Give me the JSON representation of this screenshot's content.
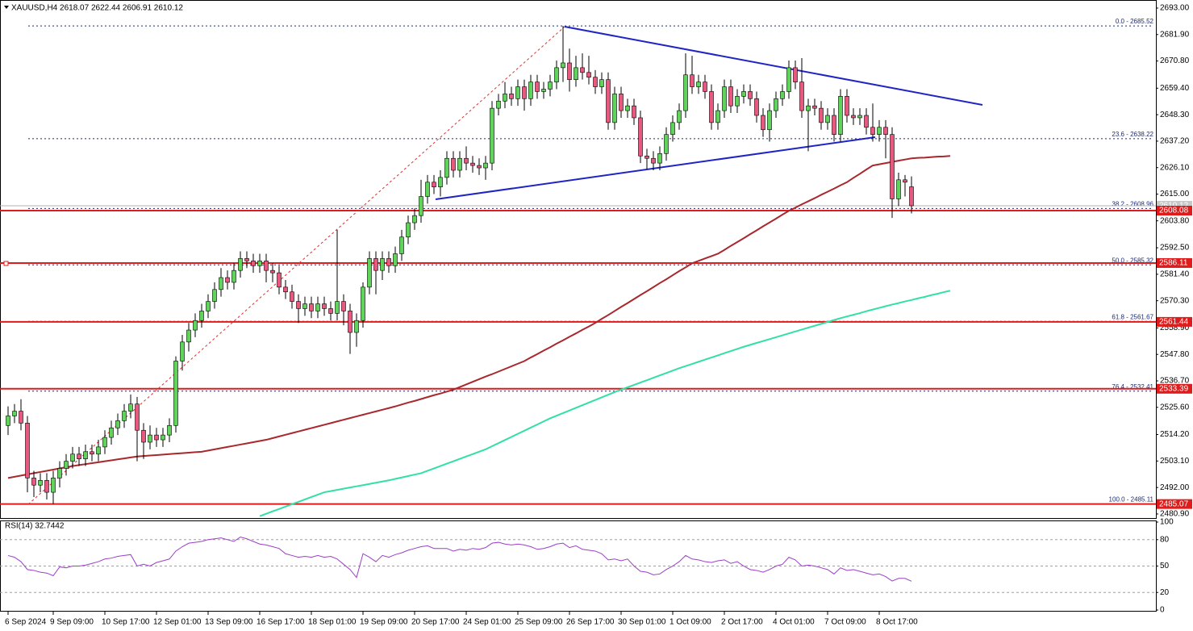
{
  "chart_data": {
    "type": "candlestick",
    "title": "XAUUSD,H4  2618.07 2622.44 2606.91 2610.12",
    "categories": [
      "6 Sep 2024",
      null,
      null,
      null,
      null,
      null,
      null,
      "9 Sep 09:00",
      null,
      null,
      null,
      null,
      null,
      null,
      null,
      "10 Sep 17:00",
      null,
      null,
      null,
      null,
      null,
      null,
      null,
      "12 Sep 01:00",
      null,
      null,
      null,
      null,
      null,
      null,
      null,
      "13 Sep 09:00",
      null,
      null,
      null,
      null,
      null,
      null,
      null,
      "16 Sep 17:00",
      null,
      null,
      null,
      null,
      null,
      null,
      null,
      "18 Sep 01:00",
      null,
      null,
      null,
      null,
      null,
      null,
      null,
      "19 Sep 09:00",
      null,
      null,
      null,
      null,
      null,
      null,
      null,
      "20 Sep 17:00",
      null,
      null,
      null,
      null,
      null,
      null,
      null,
      "24 Sep 01:00",
      null,
      null,
      null,
      null,
      null,
      null,
      null,
      "25 Sep 09:00",
      null,
      null,
      null,
      null,
      null,
      null,
      null,
      "26 Sep 17:00",
      null,
      null,
      null,
      null,
      null,
      null,
      null,
      "30 Sep 01:00",
      null,
      null,
      null,
      null,
      null,
      null,
      null,
      "1 Oct 09:00",
      null,
      null,
      null,
      null,
      null,
      null,
      null,
      "2 Oct 17:00",
      null,
      null,
      null,
      null,
      null,
      null,
      null,
      "4 Oct 01:00",
      null,
      null,
      null,
      null,
      null,
      null,
      null,
      "7 Oct 09:00",
      null,
      null,
      null,
      null,
      null,
      null,
      null,
      "8 Oct 17:00",
      null,
      null,
      null,
      null,
      null,
      null,
      null,
      null,
      null,
      null,
      null
    ],
    "open": [
      2518,
      2522,
      2524,
      2519,
      2496,
      2493,
      2495,
      2490,
      2496,
      2500,
      2503,
      2506,
      2504,
      2507,
      2506,
      2509,
      2513,
      2517,
      2520,
      2524,
      2527,
      2516,
      2511,
      2514,
      2512,
      2514,
      2518,
      2545,
      2553,
      2558,
      2562,
      2566,
      2570,
      2575,
      2580,
      2578,
      2583,
      2588,
      2587,
      2585,
      2587,
      2583,
      2582,
      2576,
      2574,
      2570,
      2567,
      2569,
      2566,
      2569,
      2567,
      2565,
      2570,
      2566,
      2557,
      2562,
      2576,
      2588,
      2583,
      2588,
      2585,
      2590,
      2597,
      2603,
      2606,
      2614,
      2620,
      2618,
      2622,
      2630,
      2625,
      2630,
      2628,
      2627,
      2626,
      2628,
      2651,
      2654,
      2657,
      2655,
      2660,
      2655,
      2662,
      2658,
      2659,
      2662,
      2668,
      2670,
      2663,
      2668,
      2666,
      2664,
      2660,
      2663,
      2645,
      2657,
      2650,
      2652,
      2647,
      2631,
      2630,
      2628,
      2632,
      2640,
      2645,
      2650,
      2665,
      2660,
      2662,
      2658,
      2645,
      2650,
      2660,
      2652,
      2656,
      2658,
      2655,
      2648,
      2642,
      2650,
      2655,
      2658,
      2668,
      2662,
      2650,
      2652,
      2651,
      2645,
      2648,
      2640,
      2656,
      2648,
      2647,
      2648,
      2643,
      2640,
      2643,
      2640,
      2613,
      2621,
      2618.07,
      null,
      null,
      null,
      null,
      null,
      null
    ],
    "high": [
      2526,
      2527,
      2529,
      2522,
      2499,
      2498,
      2498,
      2499,
      2503,
      2506,
      2509,
      2509,
      2510,
      2510,
      2512,
      2516,
      2520,
      2523,
      2527,
      2531,
      2530,
      2519,
      2518,
      2517,
      2517,
      2521,
      2547,
      2556,
      2561,
      2565,
      2569,
      2573,
      2578,
      2584,
      2583,
      2586,
      2591,
      2591,
      2590,
      2590,
      2590,
      2586,
      2585,
      2579,
      2577,
      2573,
      2572,
      2572,
      2572,
      2572,
      2570,
      2600,
      2573,
      2569,
      2565,
      2578,
      2591,
      2591,
      2591,
      2591,
      2593,
      2600,
      2606,
      2609,
      2621,
      2623,
      2623,
      2625,
      2633,
      2633,
      2633,
      2635,
      2631,
      2630,
      2631,
      2654,
      2657,
      2662,
      2660,
      2663,
      2663,
      2665,
      2665,
      2662,
      2665,
      2671,
      2685.52,
      2676,
      2673,
      2674,
      2673,
      2667,
      2666,
      2666,
      2660,
      2660,
      2655,
      2655,
      2650,
      2634,
      2633,
      2635,
      2643,
      2648,
      2653,
      2674,
      2673,
      2665,
      2665,
      2661,
      2653,
      2663,
      2663,
      2659,
      2661,
      2661,
      2658,
      2651,
      2653,
      2658,
      2661,
      2671,
      2671,
      2672,
      2655,
      2655,
      2654,
      2651,
      2651,
      2659,
      2659,
      2651,
      2651,
      2651,
      2653,
      2646,
      2646,
      2643,
      2624,
      2623,
      2622.44,
      null,
      null,
      null,
      null,
      null,
      null
    ],
    "low": [
      2514,
      2519,
      2516,
      2490,
      2488,
      2490,
      2487,
      2485.11,
      2492,
      2497,
      2500,
      2501,
      2501,
      2503,
      2503,
      2506,
      2510,
      2514,
      2517,
      2521,
      2503,
      2504,
      2508,
      2509,
      2509,
      2511,
      2515,
      2541,
      2549,
      2555,
      2559,
      2563,
      2567,
      2572,
      2575,
      2575,
      2580,
      2584,
      2582,
      2582,
      2578,
      2578,
      2573,
      2571,
      2567,
      2561,
      2564,
      2563,
      2563,
      2564,
      2562,
      2562,
      2560,
      2548,
      2551,
      2559,
      2573,
      2573,
      2579,
      2582,
      2582,
      2587,
      2594,
      2600,
      2603,
      2611,
      2615,
      2614,
      2619,
      2622,
      2622,
      2625,
      2624,
      2623,
      2621,
      2625,
      2648,
      2651,
      2652,
      2652,
      2650,
      2652,
      2655,
      2655,
      2656,
      2659,
      2662,
      2658,
      2660,
      2663,
      2661,
      2657,
      2657,
      2642,
      2642,
      2647,
      2647,
      2644,
      2628,
      2625.5,
      2625,
      2625,
      2629,
      2637,
      2642,
      2647,
      2657,
      2657,
      2655,
      2642,
      2642,
      2647,
      2649,
      2649,
      2653,
      2652,
      2645,
      2639,
      2637,
      2647,
      2652,
      2655,
      2659,
      2647,
      2633,
      2648,
      2642,
      2642,
      2637,
      2637,
      2645,
      2644,
      2644,
      2640,
      2637,
      2637,
      2630,
      2605,
      2610,
      2614,
      2606.91,
      null,
      null,
      null,
      null,
      null,
      null
    ],
    "close": [
      2522,
      2524,
      2519,
      2496,
      2493,
      2495,
      2490,
      2496,
      2500,
      2503,
      2506,
      2504,
      2507,
      2506,
      2509,
      2513,
      2517,
      2520,
      2524,
      2527,
      2516,
      2511,
      2514,
      2512,
      2514,
      2518,
      2545,
      2553,
      2558,
      2562,
      2566,
      2570,
      2575,
      2580,
      2578,
      2583,
      2588,
      2587,
      2585,
      2587,
      2583,
      2582,
      2576,
      2574,
      2570,
      2567,
      2569,
      2566,
      2569,
      2567,
      2565,
      2570,
      2566,
      2557,
      2562,
      2576,
      2588,
      2583,
      2588,
      2585,
      2590,
      2597,
      2603,
      2606,
      2614,
      2620,
      2618,
      2622,
      2630,
      2625,
      2630,
      2628,
      2627,
      2626,
      2628,
      2651,
      2654,
      2657,
      2655,
      2660,
      2655,
      2662,
      2658,
      2659,
      2662,
      2668,
      2670,
      2663,
      2668,
      2666,
      2664,
      2660,
      2663,
      2645,
      2657,
      2650,
      2652,
      2647,
      2631,
      2630,
      2628,
      2632,
      2640,
      2645,
      2650,
      2665,
      2660,
      2662,
      2658,
      2645,
      2650,
      2660,
      2652,
      2656,
      2658,
      2655,
      2648,
      2642,
      2650,
      2655,
      2658,
      2668,
      2662,
      2650,
      2652,
      2651,
      2645,
      2648,
      2640,
      2656,
      2648,
      2647,
      2648,
      2643,
      2640,
      2643,
      2640,
      2613,
      2621,
      2620,
      2610.12,
      null,
      null,
      null,
      null,
      null,
      null
    ],
    "up_color": "#5fd35a",
    "down_color": "#e8587f",
    "ylim": [
      2479.2,
      2695.7
    ],
    "yticks": [
      {
        "value": 2693,
        "label": "2693.00"
      },
      {
        "value": 2681.9,
        "label": "2681.90"
      },
      {
        "value": 2670.8,
        "label": "2670.80"
      },
      {
        "value": 2659.4,
        "label": "2659.40"
      },
      {
        "value": 2648.3,
        "label": "2648.30"
      },
      {
        "value": 2637.2,
        "label": "2637.20"
      },
      {
        "value": 2626.1,
        "label": "2626.10"
      },
      {
        "value": 2615,
        "label": "2615.00"
      },
      {
        "value": 2603.8,
        "label": "2603.80"
      },
      {
        "value": 2592.5,
        "label": "2592.50"
      },
      {
        "value": 2581.4,
        "label": "2581.40"
      },
      {
        "value": 2570.3,
        "label": "2570.30"
      },
      {
        "value": 2558.9,
        "label": "2558.90"
      },
      {
        "value": 2547.8,
        "label": "2547.80"
      },
      {
        "value": 2536.7,
        "label": "2536.70"
      },
      {
        "value": 2525.6,
        "label": "2525.60"
      },
      {
        "value": 2514.2,
        "label": "2514.20"
      },
      {
        "value": 2503.1,
        "label": "2503.10"
      },
      {
        "value": 2492,
        "label": "2492.00"
      },
      {
        "value": 2480.9,
        "label": "2480.90"
      }
    ],
    "moving_averages": [
      {
        "color": "#a8282e",
        "values": [
          2496,
          2496.5,
          2497,
          2497.5,
          2498,
          2498.5,
          2499,
          2499.5,
          2500,
          2500.5,
          2501,
          2501.4,
          2501.8,
          2502.2,
          2502.6,
          2503,
          2503.4,
          2503.8,
          2504.2,
          2504.6,
          2505,
          2505.2,
          2505.4,
          2505.6,
          2505.8,
          2506,
          2506.2,
          2506.4,
          2506.6,
          2506.8,
          2507,
          2507.5,
          2508,
          2508.5,
          2509,
          2509.5,
          2510,
          2510.5,
          2511,
          2511.5,
          2512,
          2512.7,
          2513.4,
          2514.1,
          2514.8,
          2515.5,
          2516.2,
          2516.9,
          2517.6,
          2518.3,
          2519,
          2519.7,
          2520.4,
          2521.1,
          2521.8,
          2522.5,
          2523.2,
          2523.9,
          2524.6,
          2525.3,
          2526,
          2526.8,
          2527.6,
          2528.3,
          2529.1,
          2529.9,
          2530.7,
          2531.4,
          2532.2,
          2533,
          2534.1,
          2535.2,
          2536.3,
          2537.4,
          2538.5,
          2539.5,
          2540.6,
          2541.7,
          2542.8,
          2543.9,
          2545,
          2546.5,
          2547.9,
          2549.4,
          2550.8,
          2552.3,
          2553.7,
          2555.2,
          2556.6,
          2558.1,
          2559.5,
          2561,
          2562.7,
          2564.3,
          2566,
          2567.7,
          2569.3,
          2571,
          2572.7,
          2574.3,
          2576,
          2577.7,
          2579.3,
          2581,
          2582.7,
          2584.3,
          2586,
          2587,
          2588,
          2589,
          2590,
          2591.6,
          2593.3,
          2594.9,
          2596.5,
          2598.2,
          2599.8,
          2601.5,
          2603.1,
          2604.7,
          2606.4,
          2608,
          2609.3,
          2610.7,
          2612,
          2613.3,
          2614.7,
          2616,
          2617.3,
          2618.7,
          2620,
          2621.8,
          2623.5,
          2625.3,
          2627,
          2627.5,
          2628,
          2628.5,
          2629,
          2629.5,
          2630,
          2630.2,
          2630.3,
          2630.5,
          2630.7,
          2630.8,
          2631
        ]
      },
      {
        "color": "#33e0a4",
        "values": [
          null,
          null,
          null,
          null,
          null,
          null,
          null,
          null,
          null,
          null,
          null,
          null,
          null,
          null,
          null,
          null,
          null,
          null,
          null,
          null,
          null,
          null,
          null,
          null,
          null,
          null,
          null,
          null,
          null,
          null,
          null,
          null,
          null,
          null,
          null,
          null,
          null,
          null,
          null,
          2480,
          2481,
          2482,
          2483,
          2484,
          2485,
          2486,
          2487,
          2488,
          2489,
          2490,
          2490.5,
          2491,
          2491.5,
          2492,
          2492.5,
          2493,
          2493.5,
          2494,
          2494.5,
          2495,
          2495.6,
          2496.2,
          2496.8,
          2497.4,
          2498,
          2499,
          2500,
          2501,
          2502,
          2503,
          2504,
          2505,
          2506,
          2507,
          2508,
          2509.3,
          2510.6,
          2511.9,
          2513.2,
          2514.5,
          2515.8,
          2517.1,
          2518.4,
          2519.7,
          2521,
          2522.1,
          2523.2,
          2524.3,
          2525.4,
          2526.5,
          2527.6,
          2528.7,
          2529.8,
          2530.9,
          2532,
          2533,
          2534,
          2535,
          2536,
          2537,
          2538,
          2539,
          2540,
          2541,
          2542,
          2542.9,
          2543.8,
          2544.7,
          2545.6,
          2546.5,
          2547.4,
          2548.3,
          2549.2,
          2550.1,
          2551,
          2551.8,
          2552.6,
          2553.4,
          2554.2,
          2555,
          2555.8,
          2556.6,
          2557.4,
          2558.2,
          2559,
          2559.8,
          2560.6,
          2561.4,
          2562.2,
          2563,
          2563.7,
          2564.4,
          2565.1,
          2565.9,
          2566.6,
          2567.3,
          2568,
          2568.7,
          2569.3,
          2570,
          2570.6,
          2571.3,
          2571.9,
          2572.6,
          2573.2,
          2573.9,
          2574.5
        ]
      }
    ],
    "levels": [
      {
        "value": 2608.08,
        "color": "#e01b1b"
      },
      {
        "value": 2586.11,
        "color": "#e01b1b"
      },
      {
        "value": 2561.44,
        "color": "#e01b1b"
      },
      {
        "value": 2533.39,
        "color": "#e01b1b"
      },
      {
        "value": 2485.07,
        "color": "#e01b1b"
      }
    ],
    "fib_levels": [
      {
        "value": 2685.52,
        "label": "0.0 - 2685.52"
      },
      {
        "value": 2638.22,
        "label": "23.6 - 2638.22"
      },
      {
        "value": 2608.96,
        "label": "38.2 - 2608.96"
      },
      {
        "value": 2585.32,
        "label": "50.0 - 2585.32"
      },
      {
        "value": 2561.67,
        "label": "61.8 - 2561.67"
      },
      {
        "value": 2532.41,
        "label": "76.4 - 2532.41"
      },
      {
        "value": 2485.11,
        "label": "100.0 - 2485.11"
      }
    ],
    "fib_color": "#1d2a6b",
    "current_price": 2610.12,
    "rsi": {
      "title": "RSI(14) 32.7442",
      "color": "#9b3fc9",
      "ylim": [
        0,
        100
      ],
      "yticks": [
        0,
        20,
        50,
        80,
        100
      ],
      "levels": [
        20,
        50,
        80
      ],
      "values": [
        62,
        60,
        55,
        46,
        45,
        43,
        42,
        39,
        49,
        48,
        50,
        50,
        51,
        53,
        55,
        58,
        59,
        61,
        62,
        63,
        50,
        52,
        50,
        54,
        56,
        58,
        67,
        72,
        76,
        77,
        78,
        80,
        81,
        82,
        80,
        78,
        83,
        81,
        78,
        75,
        74,
        72,
        70,
        64,
        62,
        60,
        61,
        60,
        62,
        60,
        61,
        58,
        52,
        46,
        37,
        64,
        60,
        55,
        62,
        60,
        63,
        65,
        68,
        70,
        72,
        73,
        70,
        70,
        70,
        67,
        69,
        68,
        70,
        69,
        71,
        76,
        77,
        75,
        74,
        75,
        74,
        72,
        69,
        70,
        72,
        75,
        76,
        71,
        73,
        69,
        68,
        67,
        64,
        57,
        58,
        56,
        58,
        50,
        44,
        43,
        40,
        41,
        46,
        50,
        55,
        62,
        58,
        57,
        55,
        54,
        56,
        57,
        53,
        55,
        50,
        46,
        45,
        43,
        46,
        50,
        52,
        60,
        57,
        50,
        51,
        50,
        48,
        46,
        41,
        48,
        45,
        46,
        44,
        42,
        40,
        41,
        38,
        33,
        36,
        36,
        32.7442,
        null,
        null,
        null,
        null,
        null,
        null
      ]
    }
  }
}
